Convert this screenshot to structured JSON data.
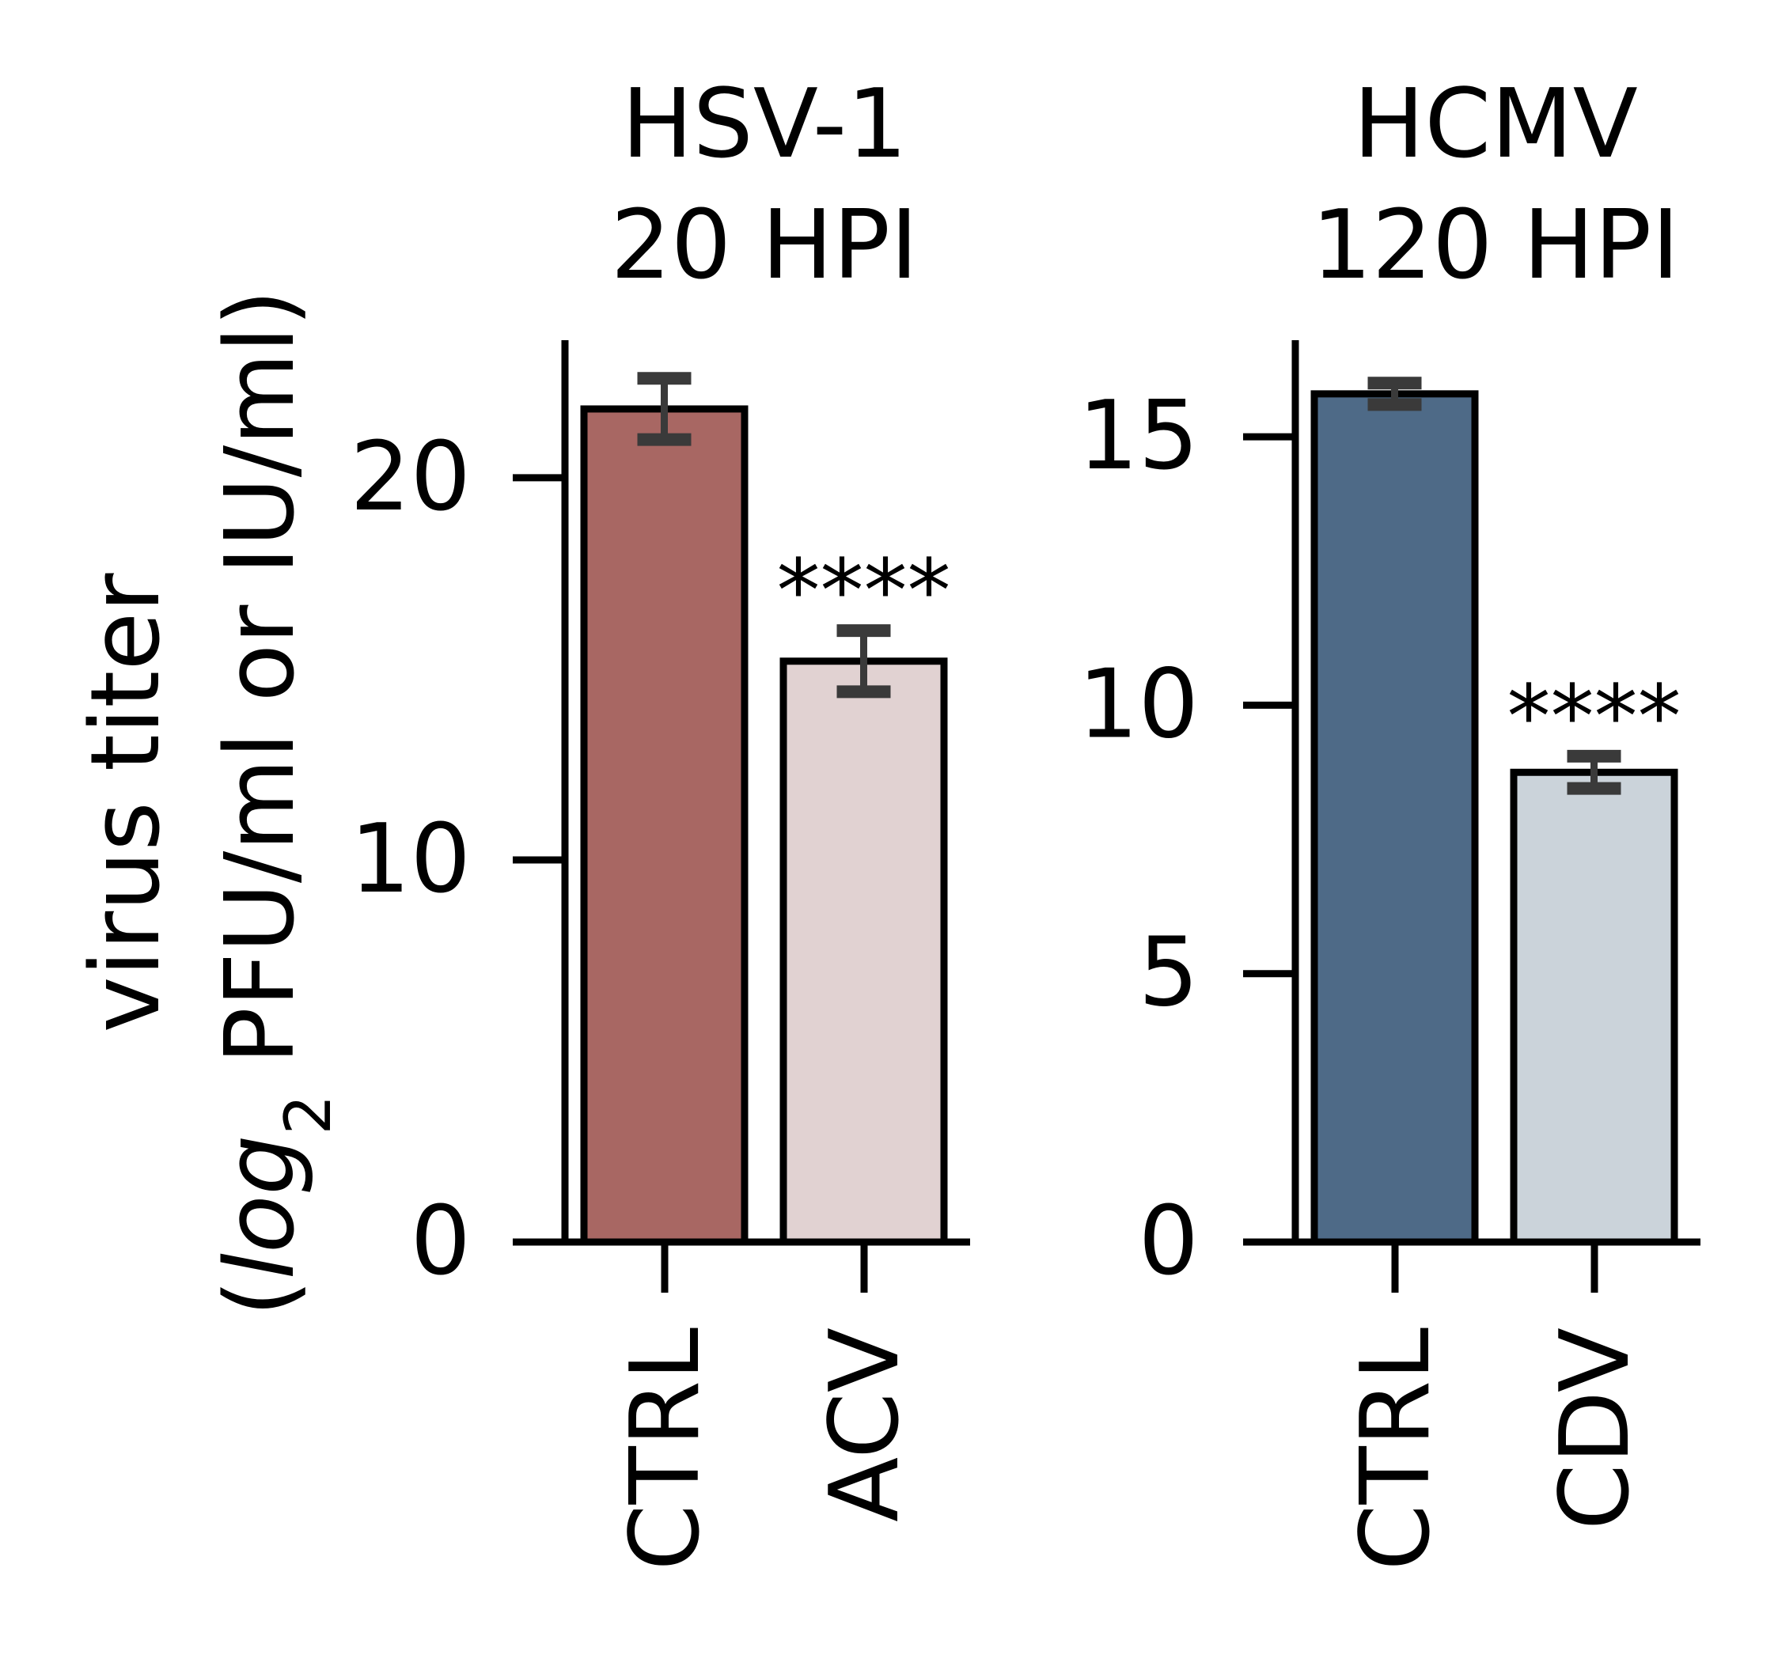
{
  "chart_data": [
    {
      "type": "bar",
      "title_lines": [
        "HSV-1",
        "20 HPI"
      ],
      "categories": [
        "CTRL",
        "ACV"
      ],
      "values": [
        21.8,
        15.2
      ],
      "errors": [
        0.8,
        0.8
      ],
      "colors": [
        "#a86763",
        "#e1d2d2"
      ],
      "annotations": [
        "",
        "****"
      ],
      "ylim": [
        0,
        23.6
      ],
      "yticks": [
        0,
        10,
        20
      ],
      "ytick_labels": [
        "0",
        "10",
        "20"
      ],
      "grid": false
    },
    {
      "type": "bar",
      "title_lines": [
        "HCMV",
        "120 HPI"
      ],
      "categories": [
        "CTRL",
        "CDV"
      ],
      "values": [
        15.8,
        8.75
      ],
      "errors": [
        0.2,
        0.3
      ],
      "colors": [
        "#4e6a87",
        "#cbd3da"
      ],
      "annotations": [
        "",
        "****"
      ],
      "ylim": [
        0,
        16.8
      ],
      "yticks": [
        0,
        5,
        10,
        15
      ],
      "ytick_labels": [
        "0",
        "5",
        "10",
        "15"
      ],
      "grid": false
    }
  ],
  "ylabel": {
    "line1": "virus titer",
    "line2_prefix": "(",
    "line2_log": "log",
    "line2_sub": "2",
    "line2_suffix": " PFU/ml or IU/ml)"
  }
}
